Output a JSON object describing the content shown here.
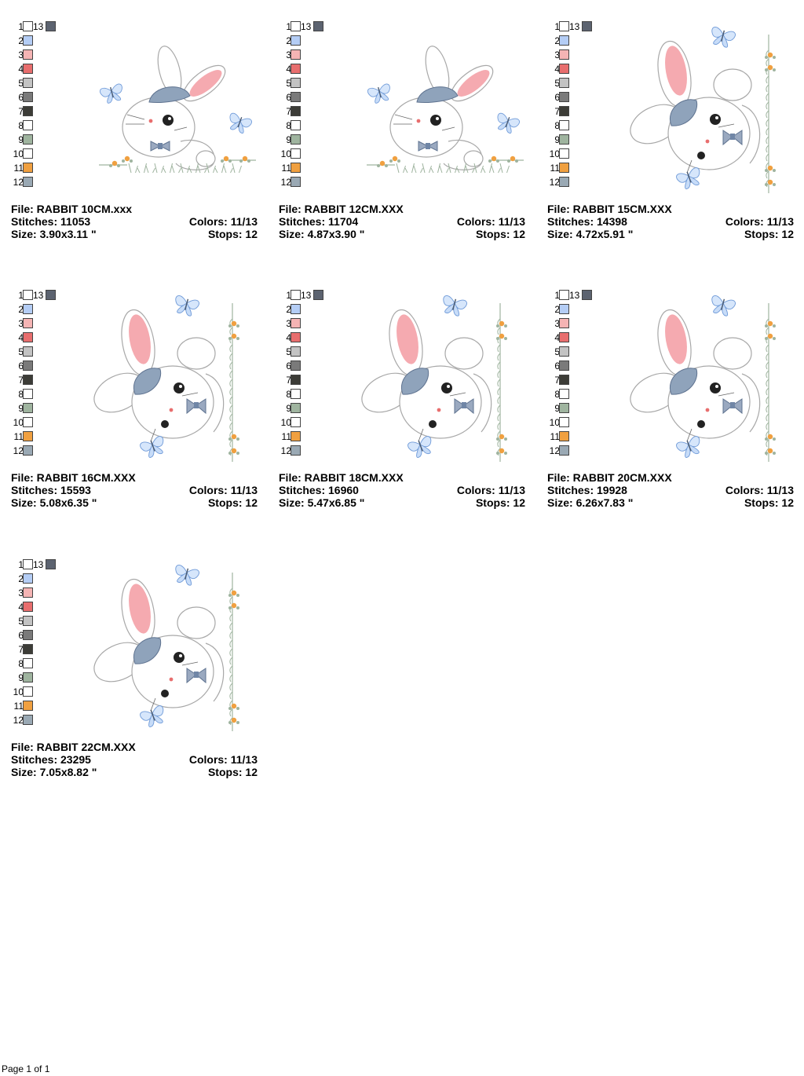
{
  "labels": {
    "file": "File:",
    "stitches": "Stitches:",
    "size": "Size:",
    "colors": "Colors:",
    "stops": "Stops:"
  },
  "palette": {
    "entries": [
      {
        "num": "1",
        "color": "#ffffff"
      },
      {
        "num": "2",
        "color": "#b4cdf5"
      },
      {
        "num": "3",
        "color": "#f5b4b4"
      },
      {
        "num": "4",
        "color": "#e86e6e"
      },
      {
        "num": "5",
        "color": "#c3c3c3"
      },
      {
        "num": "6",
        "color": "#7a7a7a"
      },
      {
        "num": "7",
        "color": "#3c3c37"
      },
      {
        "num": "8",
        "color": "#ffffff"
      },
      {
        "num": "9",
        "color": "#9fb49f"
      },
      {
        "num": "10",
        "color": "#ffffff"
      },
      {
        "num": "11",
        "color": "#f0a040"
      },
      {
        "num": "12",
        "color": "#9aa9b4"
      }
    ],
    "extra": {
      "num": "13",
      "color": "#5c6370"
    }
  },
  "designs": [
    {
      "file": "RABBIT 10CM.xxx",
      "stitches": "11053",
      "size": "3.90x3.11 \"",
      "colors": "11/13",
      "stops": "12",
      "layout": "landscape"
    },
    {
      "file": "RABBIT 12CM.XXX",
      "stitches": "11704",
      "size": "4.87x3.90 \"",
      "colors": "11/13",
      "stops": "12",
      "layout": "landscape"
    },
    {
      "file": "RABBIT 15CM.XXX",
      "stitches": "14398",
      "size": "4.72x5.91 \"",
      "colors": "11/13",
      "stops": "12",
      "layout": "portrait"
    },
    {
      "file": "RABBIT 16CM.XXX",
      "stitches": "15593",
      "size": "5.08x6.35 \"",
      "colors": "11/13",
      "stops": "12",
      "layout": "portrait"
    },
    {
      "file": "RABBIT 18CM.XXX",
      "stitches": "16960",
      "size": "5.47x6.85 \"",
      "colors": "11/13",
      "stops": "12",
      "layout": "portrait"
    },
    {
      "file": "RABBIT 20CM.XXX",
      "stitches": "19928",
      "size": "6.26x7.83 \"",
      "colors": "11/13",
      "stops": "12",
      "layout": "portrait"
    },
    {
      "file": "RABBIT 22CM.XXX",
      "stitches": "23295",
      "size": "7.05x8.82 \"",
      "colors": "11/13",
      "stops": "12",
      "layout": "portrait"
    }
  ],
  "footer": {
    "page": "Page 1 of 1"
  }
}
